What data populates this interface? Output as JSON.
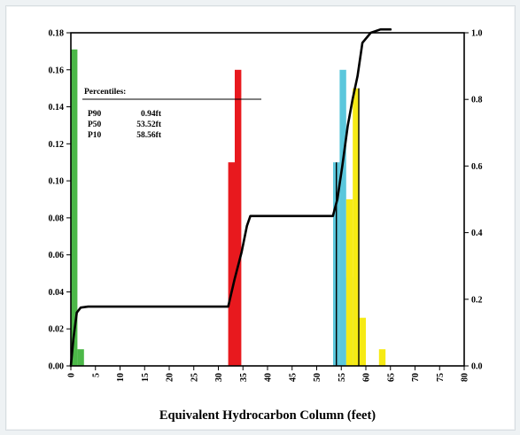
{
  "chart_data": {
    "type": "bar",
    "title": "",
    "xlabel": "Equivalent Hydrocarbon Column (feet)",
    "ylabel": "",
    "y2label": "",
    "xlim": [
      0,
      80
    ],
    "ylim": [
      0,
      0.18
    ],
    "y2lim": [
      0,
      1.0
    ],
    "x_ticks": [
      0,
      5,
      10,
      15,
      20,
      25,
      30,
      35,
      40,
      45,
      50,
      55,
      60,
      65,
      70,
      75,
      80
    ],
    "y_ticks": [
      "0.00",
      "0.02",
      "0.04",
      "0.06",
      "0.08",
      "0.10",
      "0.12",
      "0.14",
      "0.16",
      "0.18"
    ],
    "y2_ticks": [
      "0.0",
      "0.2",
      "0.4",
      "0.6",
      "0.8",
      "1.0"
    ],
    "grid": false,
    "bin_width": 1.33,
    "histograms": [
      {
        "color": "#4cb848",
        "bars": [
          {
            "x": 0.67,
            "value": 0.171
          },
          {
            "x": 2.0,
            "value": 0.009
          }
        ]
      },
      {
        "color": "#e8191e",
        "bars": [
          {
            "x": 32.67,
            "value": 0.11
          },
          {
            "x": 34.0,
            "value": 0.16
          }
        ]
      },
      {
        "color": "#5bc7dc",
        "bars": [
          {
            "x": 54.0,
            "value": 0.11
          },
          {
            "x": 55.33,
            "value": 0.16
          },
          {
            "x": 56.67,
            "value": 0.048
          }
        ]
      },
      {
        "color": "#f6ea14",
        "bars": [
          {
            "x": 56.67,
            "value": 0.09
          },
          {
            "x": 58.0,
            "value": 0.15
          },
          {
            "x": 59.33,
            "value": 0.026
          },
          {
            "x": 63.33,
            "value": 0.009
          }
        ]
      }
    ],
    "cumulative_line": {
      "color": "#000000",
      "axis": "right",
      "x": [
        0,
        0.5,
        1.2,
        2.0,
        3.5,
        32.0,
        33.3,
        34.7,
        35.8,
        36.5,
        53.3,
        54.2,
        55.2,
        56.3,
        57.3,
        58.3,
        59.3,
        61.0,
        63.0,
        65.0
      ],
      "y": [
        0,
        0.08,
        0.16,
        0.175,
        0.178,
        0.178,
        0.26,
        0.34,
        0.42,
        0.45,
        0.45,
        0.5,
        0.6,
        0.72,
        0.8,
        0.87,
        0.97,
        1.0,
        1.01,
        1.01
      ]
    },
    "vertical_lines": [
      {
        "x": 54.0,
        "color": "#000000",
        "to_value": 0.11
      },
      {
        "x": 58.56,
        "color": "#000000",
        "to_value": 0.15
      }
    ],
    "annotation": {
      "header": "Percentiles:",
      "rows": [
        {
          "label": "P90",
          "value": "0.94ft"
        },
        {
          "label": "P50",
          "value": "53.52ft"
        },
        {
          "label": "P10",
          "value": "58.56ft"
        }
      ]
    }
  }
}
